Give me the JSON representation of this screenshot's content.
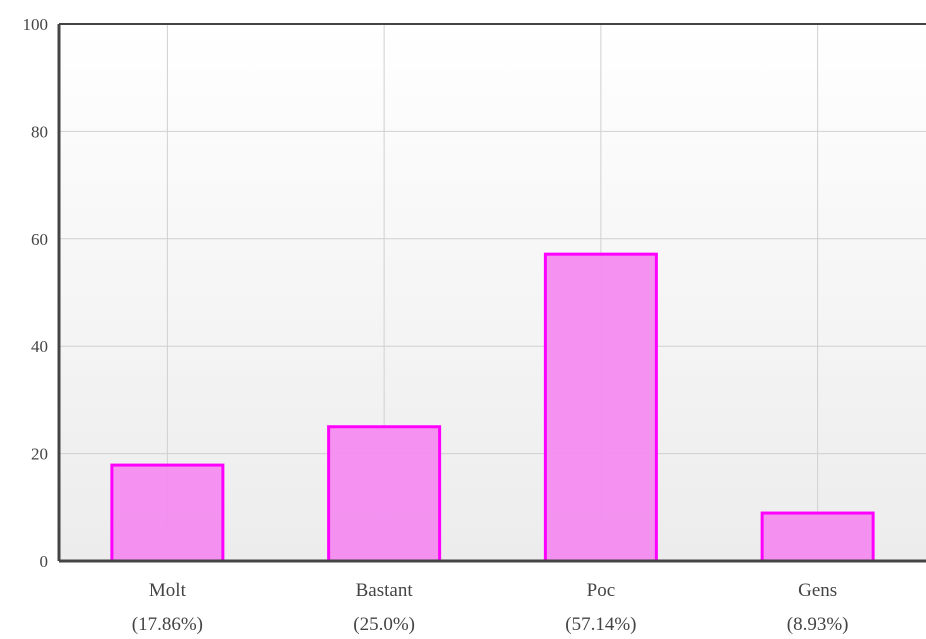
{
  "chart_data": {
    "type": "bar",
    "categories": [
      "Molt",
      "Bastant",
      "Poc",
      "Gens"
    ],
    "category_subtitles": [
      "(17.86%)",
      "(25.0%)",
      "(57.14%)",
      "(8.93%)"
    ],
    "values": [
      17.86,
      25.0,
      57.14,
      8.93
    ],
    "ylim": [
      0,
      100
    ],
    "yticks": [
      0,
      20,
      40,
      60,
      80,
      100
    ],
    "ytick_labels": [
      "0",
      "20",
      "40",
      "60",
      "80",
      "100"
    ],
    "grid": true,
    "title": "",
    "xlabel": "",
    "ylabel": "",
    "colors": {
      "bar_fill": "#f48cf0",
      "bar_stroke": "#ff00ff",
      "axis": "#444444",
      "grid": "#d0d0d0",
      "plot_bg_top": "#ffffff",
      "plot_bg_bottom": "#ececec"
    }
  }
}
